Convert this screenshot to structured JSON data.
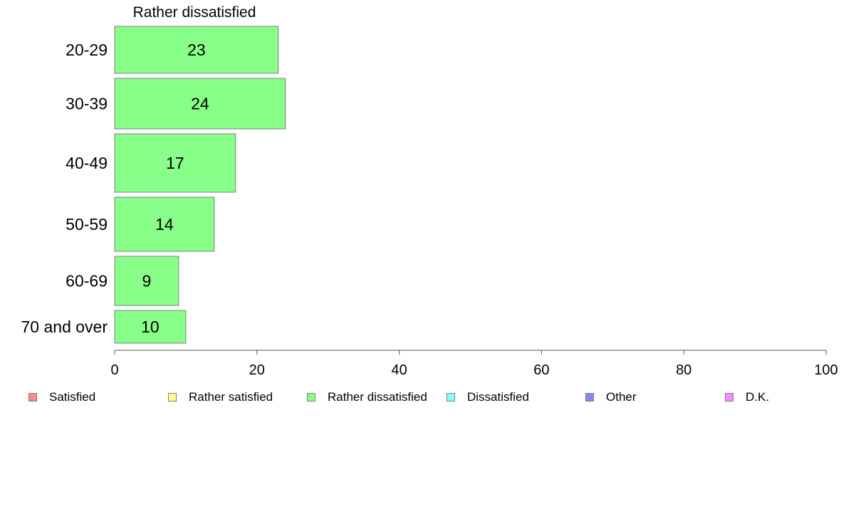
{
  "chart_data": {
    "type": "bar",
    "orientation": "horizontal",
    "title": "Rather dissatisfied",
    "categories": [
      "20-29",
      "30-39",
      "40-49",
      "50-59",
      "60-69",
      "70 and over"
    ],
    "values": [
      23,
      24,
      17,
      14,
      9,
      10
    ],
    "data_labels": [
      "23",
      "24",
      "17",
      "14",
      "9",
      "10"
    ],
    "bar_color": "#88ff88",
    "xlim": [
      0,
      100
    ],
    "x_ticks": [
      0,
      20,
      40,
      60,
      80,
      100
    ],
    "x_tick_labels": [
      "0",
      "20",
      "40",
      "60",
      "80",
      "100"
    ],
    "grid": false,
    "legend_position": "bottom",
    "legend": [
      {
        "label": "Satisfied",
        "color": "#ff8888"
      },
      {
        "label": "Rather satisfied",
        "color": "#ffff88"
      },
      {
        "label": "Rather dissatisfied",
        "color": "#88ff88"
      },
      {
        "label": "Dissatisfied",
        "color": "#88ffff"
      },
      {
        "label": "Other",
        "color": "#8888ee"
      },
      {
        "label": "D.K.",
        "color": "#ff88ff"
      }
    ]
  }
}
